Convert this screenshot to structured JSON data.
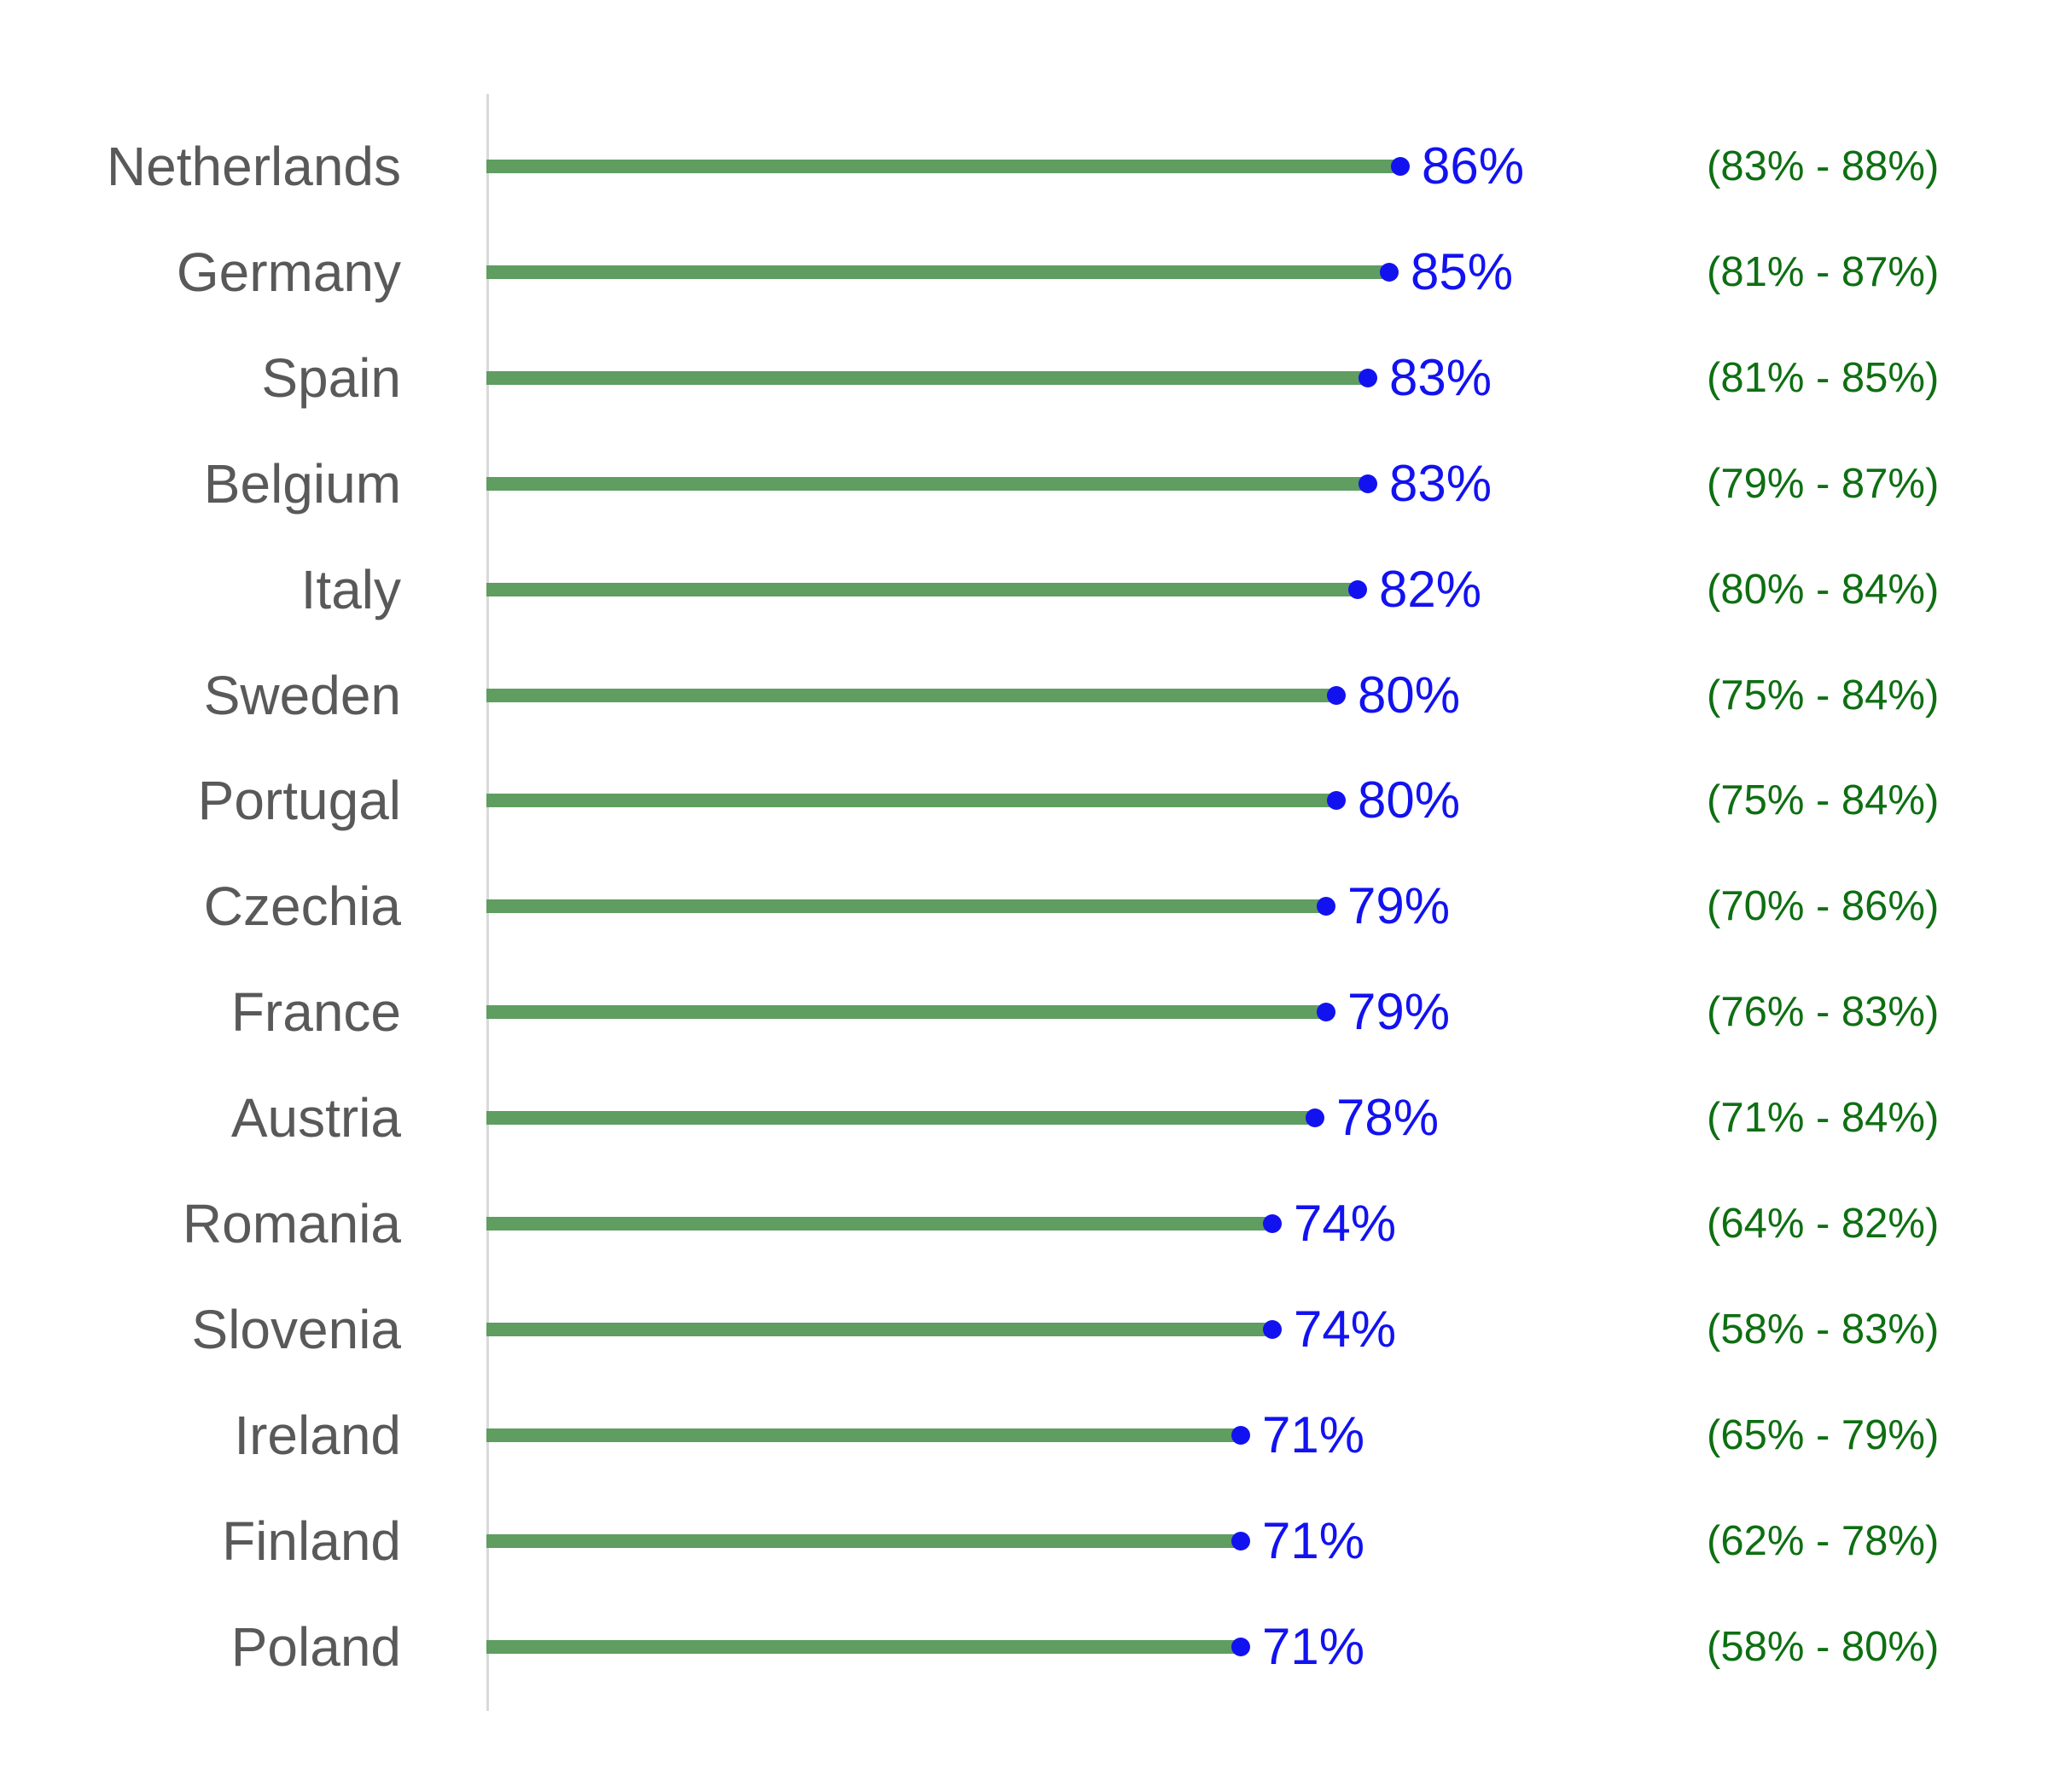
{
  "chart_data": {
    "type": "bar",
    "subtype": "lollipop-horizontal",
    "title": "",
    "xlabel": "",
    "ylabel": "",
    "unit": "%",
    "xlim": [
      0,
      100
    ],
    "grid": false,
    "legend": "none",
    "categories": [
      "Netherlands",
      "Germany",
      "Spain",
      "Belgium",
      "Italy",
      "Sweden",
      "Portugal",
      "Czechia",
      "France",
      "Austria",
      "Romania",
      "Slovenia",
      "Ireland",
      "Finland",
      "Poland"
    ],
    "values": [
      86,
      85,
      83,
      83,
      82,
      80,
      80,
      79,
      79,
      78,
      74,
      74,
      71,
      71,
      71
    ],
    "rows": [
      {
        "country": "Netherlands",
        "value": 86,
        "value_label": "86%",
        "ci_low": 83,
        "ci_high": 88,
        "ci_label": "(83% - 88%)"
      },
      {
        "country": "Germany",
        "value": 85,
        "value_label": "85%",
        "ci_low": 81,
        "ci_high": 87,
        "ci_label": "(81% - 87%)"
      },
      {
        "country": "Spain",
        "value": 83,
        "value_label": "83%",
        "ci_low": 81,
        "ci_high": 85,
        "ci_label": "(81% - 85%)"
      },
      {
        "country": "Belgium",
        "value": 83,
        "value_label": "83%",
        "ci_low": 79,
        "ci_high": 87,
        "ci_label": "(79% - 87%)"
      },
      {
        "country": "Italy",
        "value": 82,
        "value_label": "82%",
        "ci_low": 80,
        "ci_high": 84,
        "ci_label": "(80% - 84%)"
      },
      {
        "country": "Sweden",
        "value": 80,
        "value_label": "80%",
        "ci_low": 75,
        "ci_high": 84,
        "ci_label": "(75% - 84%)"
      },
      {
        "country": "Portugal",
        "value": 80,
        "value_label": "80%",
        "ci_low": 75,
        "ci_high": 84,
        "ci_label": "(75% - 84%)"
      },
      {
        "country": "Czechia",
        "value": 79,
        "value_label": "79%",
        "ci_low": 70,
        "ci_high": 86,
        "ci_label": "(70% - 86%)"
      },
      {
        "country": "France",
        "value": 79,
        "value_label": "79%",
        "ci_low": 76,
        "ci_high": 83,
        "ci_label": "(76% - 83%)"
      },
      {
        "country": "Austria",
        "value": 78,
        "value_label": "78%",
        "ci_low": 71,
        "ci_high": 84,
        "ci_label": "(71% - 84%)"
      },
      {
        "country": "Romania",
        "value": 74,
        "value_label": "74%",
        "ci_low": 64,
        "ci_high": 82,
        "ci_label": "(64% - 82%)"
      },
      {
        "country": "Slovenia",
        "value": 74,
        "value_label": "74%",
        "ci_low": 58,
        "ci_high": 83,
        "ci_label": "(58% - 83%)"
      },
      {
        "country": "Ireland",
        "value": 71,
        "value_label": "71%",
        "ci_low": 65,
        "ci_high": 79,
        "ci_label": "(65% - 79%)"
      },
      {
        "country": "Finland",
        "value": 71,
        "value_label": "71%",
        "ci_low": 62,
        "ci_high": 78,
        "ci_label": "(62% - 78%)"
      },
      {
        "country": "Poland",
        "value": 71,
        "value_label": "71%",
        "ci_low": 58,
        "ci_high": 80,
        "ci_label": "(58% - 80%)"
      }
    ],
    "colors": {
      "bar": "#5f9d61",
      "dot": "#1212f0",
      "value_text": "#1212f0",
      "ci_text": "#0e6f12",
      "label_text": "#595959",
      "axis_line": "#d9d9d9",
      "background": "#ffffff"
    }
  }
}
